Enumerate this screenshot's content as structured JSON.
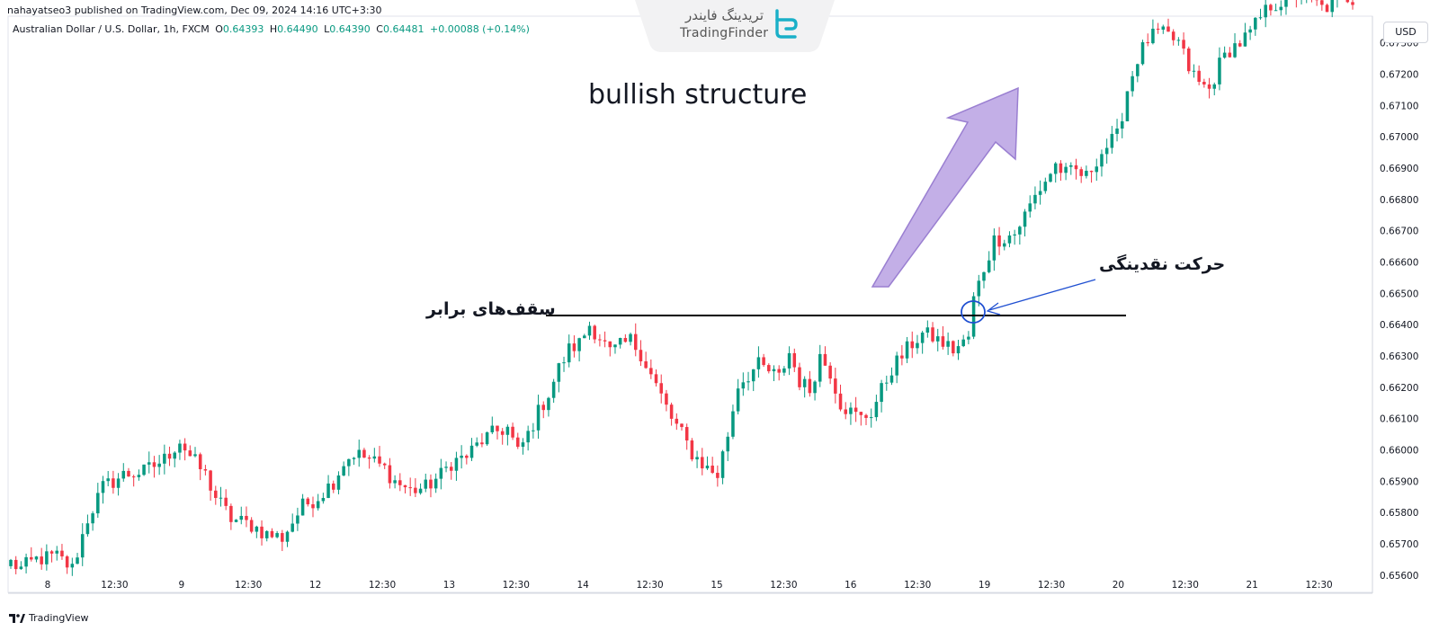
{
  "header": {
    "published": "nahayatseo3 published on TradingView.com, Dec 09, 2024 14:16 UTC+3:30",
    "symbol": "Australian Dollar / U.S. Dollar, 1h, FXCM",
    "o_label": "O",
    "o_value": "0.64393",
    "h_label": "H",
    "h_value": "0.64490",
    "l_label": "L",
    "l_value": "0.64390",
    "c_label": "C",
    "c_value": "0.64481",
    "change": "+0.00088 (+0.14%)"
  },
  "brand": {
    "name_fa": "تریدینگ فایندر",
    "name_en": "TradingFinder"
  },
  "currency": "USD",
  "footer": {
    "tradingview": "TradingView"
  },
  "annotations": {
    "title": "bullish structure",
    "equal_highs": "سقف‌های برابر",
    "liquidity_move": "حرکت نقدینگی"
  },
  "colors": {
    "up": "#089981",
    "down": "#f23645",
    "arrow_fill": "#b9a1e3",
    "arrow_stroke": "#9a7fd1",
    "circle": "#1f4fd1"
  },
  "chart_data": {
    "type": "candlestick",
    "title": "",
    "y_axis_labels": [
      "0.67300",
      "0.67200",
      "0.67100",
      "0.67000",
      "0.66900",
      "0.66800",
      "0.66700",
      "0.66600",
      "0.66500",
      "0.66400",
      "0.66300",
      "0.66200",
      "0.66100",
      "0.66000",
      "0.65900",
      "0.65800",
      "0.65700",
      "0.65600"
    ],
    "ylim": [
      0.65545,
      0.67385
    ],
    "x_axis_labels": [
      "8",
      "12:30",
      "9",
      "12:30",
      "12",
      "12:30",
      "13",
      "12:30",
      "14",
      "12:30",
      "15",
      "12:30",
      "16",
      "12:30",
      "19",
      "12:30",
      "20",
      "12:30",
      "21",
      "12:30"
    ],
    "equal_highs_level": 0.66425,
    "close_path": [
      [
        0,
        0.6564
      ],
      [
        2,
        0.6562
      ],
      [
        5,
        0.6565
      ],
      [
        9,
        0.6566
      ],
      [
        12,
        0.6562
      ],
      [
        15,
        0.6578
      ],
      [
        18,
        0.6588
      ],
      [
        22,
        0.6592
      ],
      [
        26,
        0.6593
      ],
      [
        30,
        0.6597
      ],
      [
        33,
        0.6603
      ],
      [
        35,
        0.6598
      ],
      [
        38,
        0.6592
      ],
      [
        40,
        0.6585
      ],
      [
        43,
        0.6578
      ],
      [
        47,
        0.6576
      ],
      [
        50,
        0.6573
      ],
      [
        53,
        0.6572
      ],
      [
        57,
        0.6582
      ],
      [
        60,
        0.6585
      ],
      [
        63,
        0.659
      ],
      [
        65,
        0.6596
      ],
      [
        67,
        0.6599
      ],
      [
        70,
        0.6597
      ],
      [
        73,
        0.6594
      ],
      [
        75,
        0.659
      ],
      [
        78,
        0.6587
      ],
      [
        81,
        0.6588
      ],
      [
        84,
        0.6592
      ],
      [
        86,
        0.6596
      ],
      [
        89,
        0.6598
      ],
      [
        92,
        0.6603
      ],
      [
        95,
        0.6606
      ],
      [
        97,
        0.6607
      ],
      [
        99,
        0.6599
      ],
      [
        101,
        0.6605
      ],
      [
        103,
        0.6612
      ],
      [
        105,
        0.6618
      ],
      [
        107,
        0.6626
      ],
      [
        109,
        0.6632
      ],
      [
        111,
        0.6634
      ],
      [
        113,
        0.664
      ],
      [
        115,
        0.6636
      ],
      [
        117,
        0.6631
      ],
      [
        119,
        0.6633
      ],
      [
        121,
        0.6635
      ],
      [
        123,
        0.6631
      ],
      [
        125,
        0.6624
      ],
      [
        127,
        0.6617
      ],
      [
        129,
        0.661
      ],
      [
        131,
        0.6605
      ],
      [
        133,
        0.6599
      ],
      [
        136,
        0.6594
      ],
      [
        138,
        0.6592
      ],
      [
        140,
        0.6605
      ],
      [
        142,
        0.6621
      ],
      [
        144,
        0.6624
      ],
      [
        146,
        0.6627
      ],
      [
        148,
        0.6625
      ],
      [
        150,
        0.6623
      ],
      [
        152,
        0.6631
      ],
      [
        154,
        0.6622
      ],
      [
        156,
        0.6619
      ],
      [
        158,
        0.663
      ],
      [
        160,
        0.6625
      ],
      [
        162,
        0.6615
      ],
      [
        164,
        0.6612
      ],
      [
        166,
        0.661
      ],
      [
        168,
        0.6612
      ],
      [
        170,
        0.6619
      ],
      [
        172,
        0.6626
      ],
      [
        174,
        0.663
      ],
      [
        176,
        0.6634
      ],
      [
        178,
        0.6637
      ],
      [
        180,
        0.6636
      ],
      [
        182,
        0.6634
      ],
      [
        184,
        0.6632
      ],
      [
        186,
        0.6634
      ],
      [
        187,
        0.6636
      ],
      [
        188,
        0.6648
      ],
      [
        190,
        0.6658
      ],
      [
        192,
        0.6667
      ],
      [
        194,
        0.6668
      ],
      [
        196,
        0.6669
      ],
      [
        198,
        0.6675
      ],
      [
        200,
        0.6681
      ],
      [
        202,
        0.6686
      ],
      [
        204,
        0.6691
      ],
      [
        206,
        0.6688
      ],
      [
        208,
        0.6689
      ],
      [
        210,
        0.6687
      ],
      [
        212,
        0.6693
      ],
      [
        214,
        0.6697
      ],
      [
        216,
        0.67
      ],
      [
        218,
        0.6715
      ],
      [
        220,
        0.6725
      ],
      [
        222,
        0.6731
      ],
      [
        224,
        0.6733
      ],
      [
        226,
        0.6732
      ],
      [
        228,
        0.673
      ],
      [
        230,
        0.6722
      ],
      [
        232,
        0.6717
      ],
      [
        234,
        0.6715
      ],
      [
        236,
        0.6723
      ],
      [
        238,
        0.6728
      ],
      [
        240,
        0.673
      ],
      [
        242,
        0.6733
      ],
      [
        244,
        0.6738
      ],
      [
        246,
        0.6742
      ],
      [
        248,
        0.6743
      ],
      [
        250,
        0.6745
      ],
      [
        252,
        0.6746
      ],
      [
        254,
        0.6744
      ],
      [
        256,
        0.6741
      ],
      [
        258,
        0.6742
      ],
      [
        260,
        0.6745
      ],
      [
        262,
        0.6744
      ]
    ]
  }
}
